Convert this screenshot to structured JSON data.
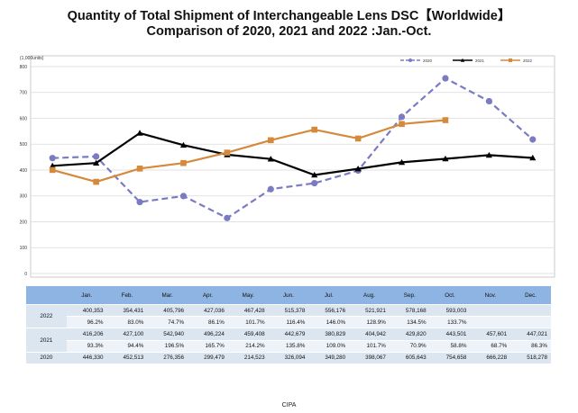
{
  "title_line1": "Quantity of Total Shipment of Interchangeable Lens DSC【Worldwide】",
  "title_line2": "Comparison of 2020, 2021 and 2022 :Jan.-Oct.",
  "source": "CIPA",
  "chart_data": {
    "type": "line",
    "title": "Quantity of Total Shipment of Interchangeable Lens DSC【Worldwide】 Comparison of 2020, 2021 and 2022 :Jan.-Oct.",
    "ylabel": "(1,000units)",
    "ylim": [
      0,
      800
    ],
    "yticks": [
      "0",
      "100",
      "200",
      "300",
      "400",
      "500",
      "600",
      "700",
      "800"
    ],
    "grid": true,
    "legend_position": "top-right",
    "categories": [
      "Jan.",
      "Feb.",
      "Mar.",
      "Apr.",
      "May.",
      "Jun.",
      "Jul.",
      "Aug.",
      "Sep.",
      "Oct.",
      "Nov.",
      "Dec."
    ],
    "series": [
      {
        "name": "2020",
        "color": "#7b7bc4",
        "style": "dashed",
        "marker": "circle",
        "values": [
          446.33,
          452.513,
          276.356,
          299.479,
          214.523,
          326.094,
          349.28,
          398.067,
          605.643,
          754.658,
          666.228,
          518.278
        ]
      },
      {
        "name": "2021",
        "color": "#000000",
        "style": "solid",
        "marker": "triangle",
        "values": [
          416.206,
          427.1,
          542.94,
          496.224,
          459.408,
          442.679,
          380.829,
          404.942,
          429.82,
          443.501,
          457.601,
          447.021
        ]
      },
      {
        "name": "2022",
        "color": "#d5893a",
        "style": "solid",
        "marker": "square",
        "values": [
          400.353,
          354.431,
          405.796,
          427.036,
          467.428,
          515.378,
          556.176,
          521.921,
          578.168,
          593.003,
          null,
          null
        ]
      }
    ]
  },
  "table": {
    "header_months": [
      "Jan.",
      "Feb.",
      "Mar.",
      "Apr.",
      "May.",
      "Jun.",
      "Jul.",
      "Aug.",
      "Sep.",
      "Oct.",
      "Nov.",
      "Dec."
    ],
    "rows": [
      {
        "year": "2022",
        "units": [
          "400,353",
          "354,431",
          "405,796",
          "427,036",
          "467,428",
          "515,378",
          "556,176",
          "521,921",
          "578,168",
          "593,003",
          "",
          ""
        ],
        "pct": [
          "96.2%",
          "83.0%",
          "74.7%",
          "86.1%",
          "101.7%",
          "116.4%",
          "146.0%",
          "128.9%",
          "134.5%",
          "133.7%",
          "",
          ""
        ]
      },
      {
        "year": "2021",
        "units": [
          "416,206",
          "427,100",
          "542,940",
          "496,224",
          "459,408",
          "442,679",
          "380,829",
          "404,942",
          "429,820",
          "443,501",
          "457,601",
          "447,021"
        ],
        "pct": [
          "93.3%",
          "94.4%",
          "196.5%",
          "165.7%",
          "214.2%",
          "135.8%",
          "109.0%",
          "101.7%",
          "70.9%",
          "58.8%",
          "68.7%",
          "86.3%"
        ]
      },
      {
        "year": "2020",
        "units": [
          "446,330",
          "452,513",
          "276,356",
          "299,479",
          "214,523",
          "326,094",
          "349,280",
          "398,067",
          "605,643",
          "754,658",
          "666,228",
          "518,278"
        ]
      }
    ]
  }
}
